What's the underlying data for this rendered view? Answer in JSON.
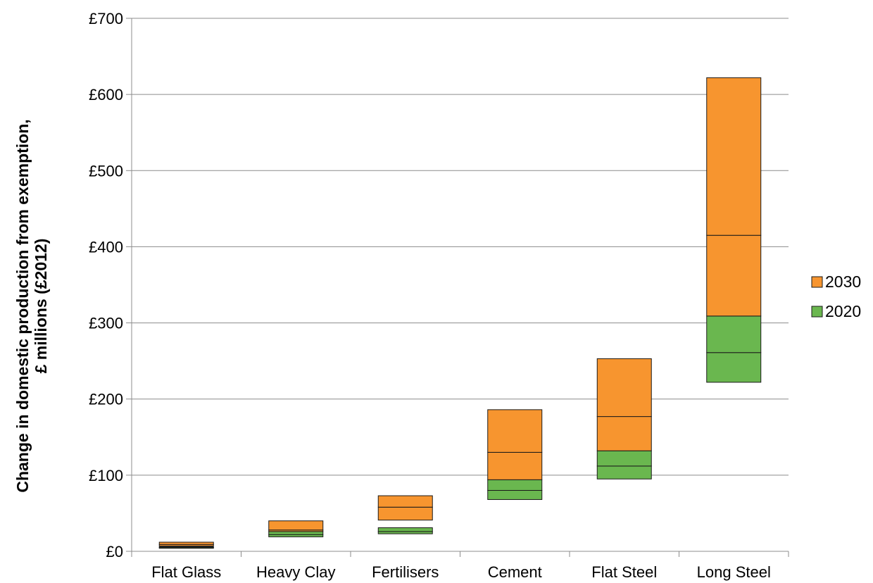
{
  "chart_data": {
    "type": "bar",
    "subtype": "floating-stacked-range",
    "title": "",
    "xlabel": "",
    "ylabel_lines": [
      "Change in domestic production from exemption,",
      "£ millions (£2012)"
    ],
    "ylim": [
      0,
      700
    ],
    "ytick_step": 100,
    "ytick_labels": [
      "£0",
      "£100",
      "£200",
      "£300",
      "£400",
      "£500",
      "£600",
      "£700"
    ],
    "grid": true,
    "legend_position": "right",
    "categories": [
      "Flat Glass",
      "Heavy Clay",
      "Fertilisers",
      "Cement",
      "Flat Steel",
      "Long Steel"
    ],
    "series": [
      {
        "name": "2020",
        "color": "#6ab74f",
        "low": [
          4,
          19,
          23,
          68,
          95,
          222
        ],
        "mid": [
          5,
          22,
          26,
          80,
          112,
          261
        ],
        "high": [
          6,
          26,
          31,
          94,
          132,
          309
        ]
      },
      {
        "name": "2030",
        "color": "#f7952f",
        "low": [
          7,
          26,
          41,
          94,
          132,
          309
        ],
        "mid": [
          9,
          28,
          58,
          130,
          177,
          415
        ],
        "high": [
          12,
          40,
          73,
          186,
          253,
          622
        ]
      }
    ],
    "legend_order": [
      "2030",
      "2020"
    ]
  }
}
